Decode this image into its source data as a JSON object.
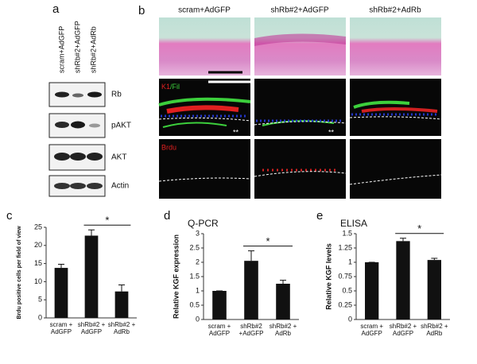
{
  "panel_labels": [
    "a",
    "b",
    "c",
    "d",
    "e"
  ],
  "blot": {
    "lanes": [
      "scram+AdGFP",
      "shRb#2+AdGFP",
      "shRb#2+AdRb"
    ],
    "rows": [
      "Rb",
      "pAKT",
      "AKT",
      "Actin"
    ]
  },
  "images": {
    "columns": [
      "scram+AdGFP",
      "shRb#2+AdGFP",
      "shRb#2+AdRb"
    ],
    "stain_row": {
      "red": "K1",
      "green": "/Fil"
    },
    "brdu_row": "Brdu",
    "marks": [
      "**",
      "**"
    ]
  },
  "chart_data": [
    {
      "type": "bar",
      "ylabel": "Brdu positive cells per field of view",
      "categories": [
        "scram + AdGFP",
        "shRb#2 + AdGFP",
        "shRb#2 + AdRb"
      ],
      "values": [
        13.8,
        22.7,
        7.3
      ],
      "errors": [
        1.0,
        1.6,
        1.8
      ],
      "color": "#111111",
      "ylim": [
        0,
        25
      ],
      "yticks": [
        0,
        5,
        10,
        15,
        20,
        25
      ],
      "annotation": "*"
    },
    {
      "type": "bar",
      "title": "Q-PCR",
      "ylabel": "Relative KGF expression",
      "categories": [
        "scram + AdGFP",
        "shRb#2 +AdGFP",
        "shRb#2 + AdRb"
      ],
      "values": [
        1.0,
        2.05,
        1.25
      ],
      "errors": [
        0,
        0.35,
        0.12
      ],
      "color": "#111111",
      "ylim": [
        0,
        3
      ],
      "yticks": [
        0,
        0.5,
        1,
        1.5,
        2,
        2.5,
        3
      ],
      "annotation": "*"
    },
    {
      "type": "bar",
      "title": "ELISA",
      "ylabel": "Relative KGF levels",
      "categories": [
        "scram + AdGFP",
        "shRb#2 + AdGFP",
        "shRb#2 + AdRb"
      ],
      "values": [
        1.0,
        1.37,
        1.04
      ],
      "errors": [
        0,
        0.05,
        0.03
      ],
      "color": "#111111",
      "ylim": [
        0,
        1.5
      ],
      "yticks": [
        0,
        0.25,
        0.5,
        0.75,
        1,
        1.25,
        1.5
      ],
      "annotation": "*"
    }
  ]
}
